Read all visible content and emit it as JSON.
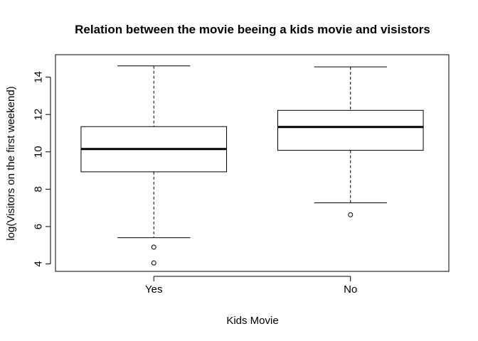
{
  "chart_data": {
    "type": "boxplot",
    "title": "Relation between the movie beeing a kids movie and visistors",
    "xlabel": "Kids Movie",
    "ylabel": "log(Visitors on the first weekend)",
    "ylim": [
      3.6,
      15.2
    ],
    "yticks": [
      4,
      6,
      8,
      10,
      12,
      14
    ],
    "categories": [
      "Yes",
      "No"
    ],
    "boxes": [
      {
        "category": "Yes",
        "whisker_low": 5.4,
        "q1": 8.93,
        "median": 10.15,
        "q3": 11.35,
        "whisker_high": 14.6,
        "outliers": [
          4.9,
          4.05
        ]
      },
      {
        "category": "No",
        "whisker_low": 7.27,
        "q1": 10.08,
        "median": 11.33,
        "q3": 12.22,
        "whisker_high": 14.55,
        "outliers": [
          6.63
        ]
      }
    ],
    "grid": false
  }
}
